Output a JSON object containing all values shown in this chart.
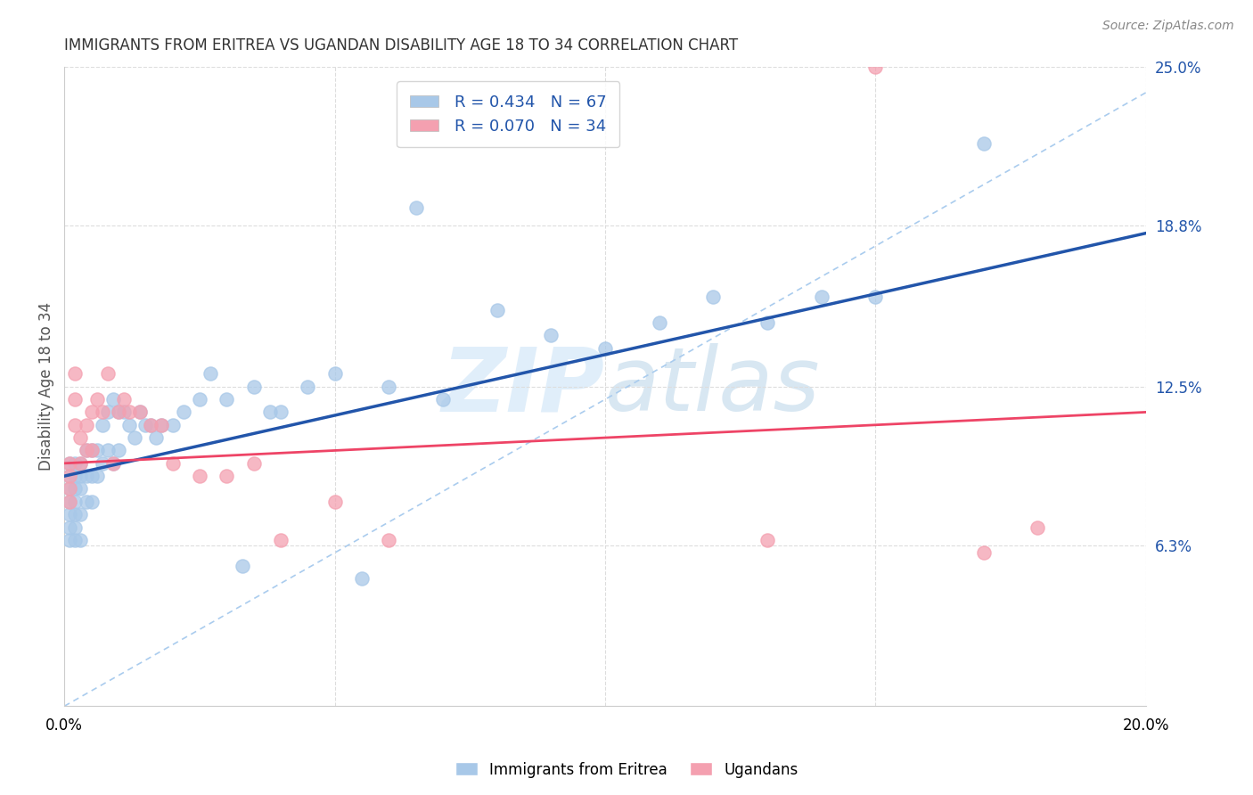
{
  "title": "IMMIGRANTS FROM ERITREA VS UGANDAN DISABILITY AGE 18 TO 34 CORRELATION CHART",
  "source": "Source: ZipAtlas.com",
  "ylabel": "Disability Age 18 to 34",
  "xlim": [
    0.0,
    0.2
  ],
  "ylim": [
    0.0,
    0.25
  ],
  "ytick_labels_right": [
    "25.0%",
    "18.8%",
    "12.5%",
    "6.3%"
  ],
  "ytick_vals_right": [
    0.25,
    0.188,
    0.125,
    0.063
  ],
  "r_eritrea": 0.434,
  "n_eritrea": 67,
  "r_ugandan": 0.07,
  "n_ugandan": 34,
  "color_eritrea": "#a8c8e8",
  "color_ugandan": "#f4a0b0",
  "trendline_eritrea_color": "#2255aa",
  "trendline_ugandan_color": "#ee4466",
  "trendline_dashed_color": "#aaccee",
  "watermark_color": "#ddeeff",
  "legend_label_eritrea": "Immigrants from Eritrea",
  "legend_label_ugandan": "Ugandans",
  "eritrea_trendline": [
    0.09,
    0.185
  ],
  "ugandan_trendline": [
    0.095,
    0.115
  ],
  "eritrea_x": [
    0.001,
    0.001,
    0.001,
    0.001,
    0.001,
    0.001,
    0.001,
    0.002,
    0.002,
    0.002,
    0.002,
    0.002,
    0.002,
    0.002,
    0.003,
    0.003,
    0.003,
    0.003,
    0.003,
    0.004,
    0.004,
    0.004,
    0.005,
    0.005,
    0.005,
    0.006,
    0.006,
    0.007,
    0.007,
    0.008,
    0.008,
    0.009,
    0.009,
    0.01,
    0.01,
    0.011,
    0.012,
    0.013,
    0.014,
    0.015,
    0.016,
    0.017,
    0.018,
    0.02,
    0.022,
    0.025,
    0.027,
    0.03,
    0.033,
    0.035,
    0.038,
    0.04,
    0.045,
    0.05,
    0.055,
    0.06,
    0.065,
    0.07,
    0.08,
    0.09,
    0.1,
    0.11,
    0.12,
    0.13,
    0.14,
    0.15,
    0.17
  ],
  "eritrea_y": [
    0.095,
    0.09,
    0.085,
    0.08,
    0.075,
    0.07,
    0.065,
    0.095,
    0.09,
    0.085,
    0.08,
    0.075,
    0.07,
    0.065,
    0.095,
    0.09,
    0.085,
    0.075,
    0.065,
    0.1,
    0.09,
    0.08,
    0.1,
    0.09,
    0.08,
    0.1,
    0.09,
    0.11,
    0.095,
    0.115,
    0.1,
    0.12,
    0.095,
    0.115,
    0.1,
    0.115,
    0.11,
    0.105,
    0.115,
    0.11,
    0.11,
    0.105,
    0.11,
    0.11,
    0.115,
    0.12,
    0.13,
    0.12,
    0.055,
    0.125,
    0.115,
    0.115,
    0.125,
    0.13,
    0.05,
    0.125,
    0.195,
    0.12,
    0.155,
    0.145,
    0.14,
    0.15,
    0.16,
    0.15,
    0.16,
    0.16,
    0.22
  ],
  "ugandan_x": [
    0.001,
    0.001,
    0.001,
    0.001,
    0.002,
    0.002,
    0.002,
    0.003,
    0.003,
    0.004,
    0.004,
    0.005,
    0.005,
    0.006,
    0.007,
    0.008,
    0.009,
    0.01,
    0.011,
    0.012,
    0.014,
    0.016,
    0.018,
    0.02,
    0.025,
    0.03,
    0.035,
    0.04,
    0.05,
    0.06,
    0.13,
    0.15,
    0.17,
    0.18
  ],
  "ugandan_y": [
    0.095,
    0.09,
    0.085,
    0.08,
    0.13,
    0.12,
    0.11,
    0.105,
    0.095,
    0.11,
    0.1,
    0.115,
    0.1,
    0.12,
    0.115,
    0.13,
    0.095,
    0.115,
    0.12,
    0.115,
    0.115,
    0.11,
    0.11,
    0.095,
    0.09,
    0.09,
    0.095,
    0.065,
    0.08,
    0.065,
    0.065,
    0.25,
    0.06,
    0.07
  ]
}
